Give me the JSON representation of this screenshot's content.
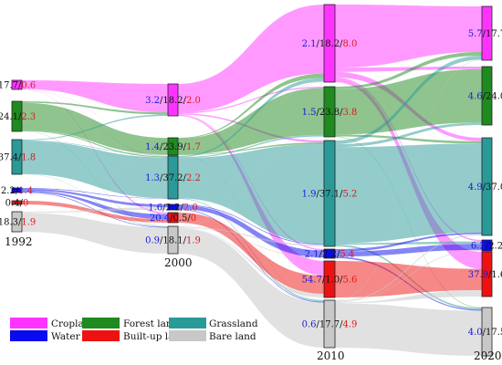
{
  "years": [
    "1992",
    "2000",
    "2010",
    "2020"
  ],
  "categories": [
    {
      "key": "cropland",
      "name": "Cropland",
      "color": "#ff33ff"
    },
    {
      "key": "forest",
      "name": "Forest land",
      "color": "#1f8a1f"
    },
    {
      "key": "grassland",
      "name": "Grassland",
      "color": "#2a9a98"
    },
    {
      "key": "water",
      "name": "Water",
      "color": "#0a0aee"
    },
    {
      "key": "builtup",
      "name": "Built-up land",
      "color": "#ee1111"
    },
    {
      "key": "bare",
      "name": "Bare land",
      "color": "#c8c8c8"
    }
  ],
  "stage_order": [
    [
      "cropland",
      "forest",
      "grassland",
      "water",
      "builtup",
      "bare"
    ],
    [
      "cropland",
      "forest",
      "grassland",
      "water",
      "builtup",
      "bare"
    ],
    [
      "cropland",
      "forest",
      "grassland",
      "water",
      "builtup",
      "bare"
    ],
    [
      "cropland",
      "forest",
      "grassland",
      "water",
      "builtup",
      "bare"
    ]
  ],
  "node_labels": [
    {
      "cropland": {
        "blue": "",
        "black": "17.7",
        "red": "0.6"
      },
      "forest": {
        "blue": "",
        "black": "24.1",
        "red": "2.3"
      },
      "grassland": {
        "blue": "",
        "black": "37.4",
        "red": "1.8"
      },
      "water": {
        "blue": "",
        "black": "2.2",
        "red": "1.4"
      },
      "builtup": {
        "blue": "",
        "black": "0.4",
        "red": "0"
      },
      "bare": {
        "blue": "",
        "black": "18.3",
        "red": "1.9"
      }
    },
    {
      "cropland": {
        "blue": "3.2",
        "black": "18.2",
        "red": "2.0"
      },
      "forest": {
        "blue": "1.4",
        "black": "23.9",
        "red": "1.7"
      },
      "grassland": {
        "blue": "1.3",
        "black": "37.2",
        "red": "2.2"
      },
      "water": {
        "blue": "1.6",
        "black": "2.2",
        "red": "2.0"
      },
      "builtup": {
        "blue": "20.4",
        "black": "0.5",
        "red": "0"
      },
      "bare": {
        "blue": "0.9",
        "black": "18.1",
        "red": "1.9"
      }
    },
    {
      "cropland": {
        "blue": "2.1",
        "black": "18.2",
        "red": "8.0"
      },
      "forest": {
        "blue": "1.5",
        "black": "23.8",
        "red": "3.8"
      },
      "grassland": {
        "blue": "1.9",
        "black": "37.1",
        "red": "5.2"
      },
      "water": {
        "blue": "2.1",
        "black": "2.2",
        "red": "5.4"
      },
      "builtup": {
        "blue": "54.7",
        "black": "1.0",
        "red": "5.6"
      },
      "bare": {
        "blue": "0.6",
        "black": "17.7",
        "red": "4.9"
      }
    },
    {
      "cropland": {
        "blue": "5.7",
        "black": "17.7",
        "red": ""
      },
      "forest": {
        "blue": "4.6",
        "black": "24.0",
        "red": ""
      },
      "grassland": {
        "blue": "4.9",
        "black": "37.0",
        "red": ""
      },
      "water": {
        "blue": "6.2",
        "black": "2.2",
        "red": ""
      },
      "builtup": {
        "blue": "37.9",
        "black": "1.6",
        "red": ""
      },
      "bare": {
        "blue": "4.0",
        "black": "17.5",
        "red": ""
      }
    }
  ],
  "flows": [
    [
      {
        "from": "cropland",
        "to": "cropland",
        "value": 17.1
      },
      {
        "from": "cropland",
        "to": "grassland",
        "value": 0.3
      },
      {
        "from": "cropland",
        "to": "builtup",
        "value": 0.2
      },
      {
        "from": "cropland",
        "to": "forest",
        "value": 0.1
      },
      {
        "from": "forest",
        "to": "forest",
        "value": 21.8
      },
      {
        "from": "forest",
        "to": "cropland",
        "value": 1.2
      },
      {
        "from": "forest",
        "to": "grassland",
        "value": 0.9
      },
      {
        "from": "forest",
        "to": "bare",
        "value": 0.2
      },
      {
        "from": "grassland",
        "to": "grassland",
        "value": 35.6
      },
      {
        "from": "grassland",
        "to": "cropland",
        "value": 0.9
      },
      {
        "from": "grassland",
        "to": "forest",
        "value": 0.6
      },
      {
        "from": "grassland",
        "to": "bare",
        "value": 0.3
      },
      {
        "from": "water",
        "to": "water",
        "value": 0.8
      },
      {
        "from": "water",
        "to": "builtup",
        "value": 0.6
      },
      {
        "from": "water",
        "to": "grassland",
        "value": 0.4
      },
      {
        "from": "water",
        "to": "bare",
        "value": 0.4
      },
      {
        "from": "builtup",
        "to": "builtup",
        "value": 0.4
      },
      {
        "from": "bare",
        "to": "bare",
        "value": 17.2
      },
      {
        "from": "bare",
        "to": "water",
        "value": 0.8
      },
      {
        "from": "bare",
        "to": "grassland",
        "value": 0.2
      },
      {
        "from": "bare",
        "to": "forest",
        "value": 0.1
      }
    ],
    [
      {
        "from": "cropland",
        "to": "cropland",
        "value": 16.2
      },
      {
        "from": "cropland",
        "to": "builtup",
        "value": 0.4
      },
      {
        "from": "cropland",
        "to": "forest",
        "value": 0.6
      },
      {
        "from": "cropland",
        "to": "grassland",
        "value": 0.7
      },
      {
        "from": "cropland",
        "to": "water",
        "value": 0.3
      },
      {
        "from": "forest",
        "to": "forest",
        "value": 22.2
      },
      {
        "from": "forest",
        "to": "cropland",
        "value": 1.0
      },
      {
        "from": "forest",
        "to": "grassland",
        "value": 0.6
      },
      {
        "from": "forest",
        "to": "bare",
        "value": 0.1
      },
      {
        "from": "grassland",
        "to": "grassland",
        "value": 35.0
      },
      {
        "from": "grassland",
        "to": "cropland",
        "value": 0.9
      },
      {
        "from": "grassland",
        "to": "forest",
        "value": 0.8
      },
      {
        "from": "grassland",
        "to": "bare",
        "value": 0.5
      },
      {
        "from": "water",
        "to": "water",
        "value": 1.6
      },
      {
        "from": "water",
        "to": "grassland",
        "value": 0.3
      },
      {
        "from": "water",
        "to": "bare",
        "value": 0.3
      },
      {
        "from": "builtup",
        "to": "builtup",
        "value": 0.5
      },
      {
        "from": "bare",
        "to": "bare",
        "value": 16.9
      },
      {
        "from": "bare",
        "to": "grassland",
        "value": 0.6
      },
      {
        "from": "bare",
        "to": "builtup",
        "value": 0.1
      },
      {
        "from": "bare",
        "to": "cropland",
        "value": 0.1
      },
      {
        "from": "bare",
        "to": "forest",
        "value": 0.2
      },
      {
        "from": "bare",
        "to": "water",
        "value": 0.2
      }
    ],
    [
      {
        "from": "cropland",
        "to": "cropland",
        "value": 14.8
      },
      {
        "from": "cropland",
        "to": "builtup",
        "value": 0.8
      },
      {
        "from": "cropland",
        "to": "forest",
        "value": 1.0
      },
      {
        "from": "cropland",
        "to": "grassland",
        "value": 1.3
      },
      {
        "from": "cropland",
        "to": "water",
        "value": 0.3
      },
      {
        "from": "forest",
        "to": "forest",
        "value": 21.5
      },
      {
        "from": "forest",
        "to": "cropland",
        "value": 1.2
      },
      {
        "from": "forest",
        "to": "grassland",
        "value": 0.9
      },
      {
        "from": "forest",
        "to": "bare",
        "value": 0.2
      },
      {
        "from": "grassland",
        "to": "grassland",
        "value": 33.7
      },
      {
        "from": "grassland",
        "to": "cropland",
        "value": 1.3
      },
      {
        "from": "grassland",
        "to": "forest",
        "value": 1.0
      },
      {
        "from": "grassland",
        "to": "bare",
        "value": 0.6
      },
      {
        "from": "grassland",
        "to": "water",
        "value": 0.5
      },
      {
        "from": "water",
        "to": "water",
        "value": 1.2
      },
      {
        "from": "water",
        "to": "grassland",
        "value": 0.6
      },
      {
        "from": "water",
        "to": "bare",
        "value": 0.4
      },
      {
        "from": "builtup",
        "to": "builtup",
        "value": 1.0
      },
      {
        "from": "bare",
        "to": "bare",
        "value": 16.5
      },
      {
        "from": "bare",
        "to": "grassland",
        "value": 0.5
      },
      {
        "from": "bare",
        "to": "water",
        "value": 0.2
      },
      {
        "from": "bare",
        "to": "builtup",
        "value": 0.3
      },
      {
        "from": "bare",
        "to": "cropland",
        "value": 0.2
      }
    ]
  ],
  "legend": [
    {
      "key": "cropland",
      "name": "Cropland"
    },
    {
      "key": "forest",
      "name": "Forest land"
    },
    {
      "key": "grassland",
      "name": "Grassland"
    },
    {
      "key": "water",
      "name": "Water"
    },
    {
      "key": "builtup",
      "name": "Built-up land"
    },
    {
      "key": "bare",
      "name": "Bare land"
    }
  ]
}
